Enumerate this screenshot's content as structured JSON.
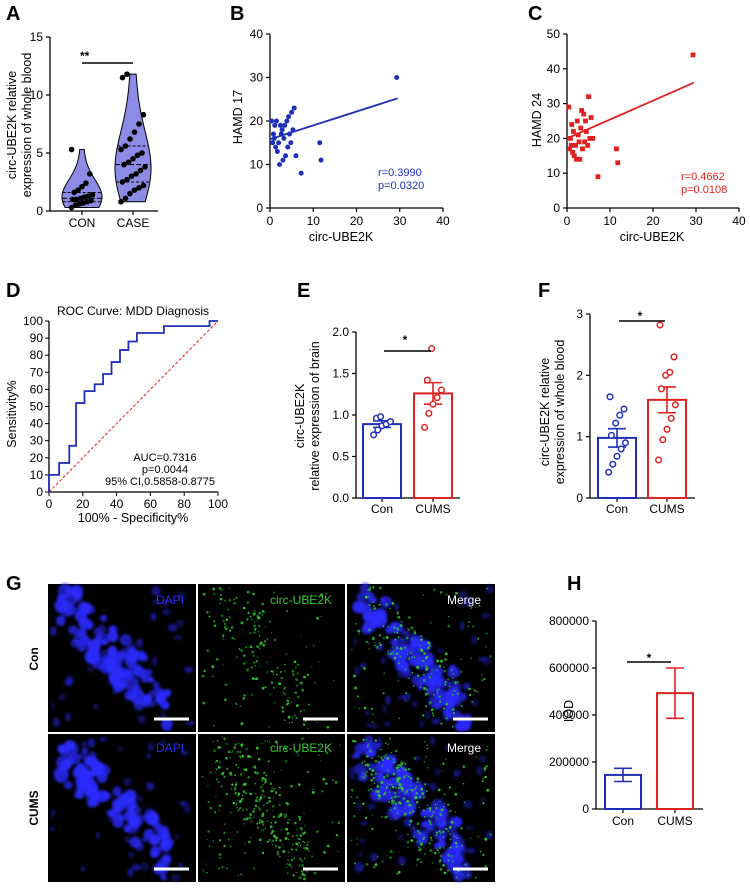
{
  "panels": {
    "A": "A",
    "B": "B",
    "C": "C",
    "D": "D",
    "E": "E",
    "F": "F",
    "G": "G",
    "H": "H"
  },
  "colors": {
    "blue": "#1f2fb8",
    "red": "#e02020",
    "violin_fill": "#8c8ce6",
    "dapi": "#2a2aff",
    "green": "#34c834"
  },
  "chart_data": [
    {
      "id": "A",
      "type": "violin",
      "ylabel_line1": "circ-UBE2K relative",
      "ylabel_line2": "expression of  whole blood",
      "ylim": [
        0,
        15
      ],
      "yticks": [
        "0",
        "5",
        "10",
        "15"
      ],
      "categories": [
        "CON",
        "CASE"
      ],
      "significance": "**",
      "groups": [
        {
          "name": "CON",
          "points": [
            0.3,
            0.5,
            0.6,
            0.7,
            0.8,
            0.9,
            1.0,
            1.0,
            1.1,
            1.2,
            1.3,
            1.4,
            1.6,
            1.8,
            2.1,
            2.4,
            3.2,
            5.3
          ]
        },
        {
          "name": "CASE",
          "points": [
            0.8,
            1.1,
            1.5,
            1.8,
            2.0,
            2.2,
            2.5,
            2.7,
            3.0,
            3.2,
            3.5,
            3.8,
            4.0,
            4.2,
            4.5,
            4.8,
            5.0,
            5.3,
            5.6,
            6.2,
            6.8,
            7.5,
            8.3,
            11.5,
            11.8
          ]
        }
      ]
    },
    {
      "id": "B",
      "type": "scatter",
      "xlabel": "circ-UBE2K",
      "ylabel": "HAMD 17",
      "xlim": [
        0,
        40
      ],
      "ylim": [
        0,
        40
      ],
      "xticks": [
        "0",
        "10",
        "20",
        "30",
        "40"
      ],
      "yticks": [
        "0",
        "10",
        "20",
        "30",
        "40"
      ],
      "r_text": "r=0.3990",
      "p_text": "p=0.0320",
      "fit": {
        "x": [
          0,
          29.5
        ],
        "y": [
          15.8,
          25.2
        ]
      },
      "x": [
        0.4,
        0.6,
        0.8,
        1.0,
        1.1,
        1.3,
        1.5,
        1.7,
        2.0,
        2.2,
        2.4,
        2.6,
        2.8,
        3.0,
        3.2,
        3.4,
        3.6,
        3.9,
        4.1,
        4.3,
        4.5,
        4.8,
        5.0,
        5.3,
        5.6,
        6.0,
        7.2,
        11.5,
        11.8,
        29.3
      ],
      "y": [
        20,
        15,
        17,
        16,
        19,
        14,
        20,
        13,
        15,
        10,
        19,
        17,
        18,
        11,
        16,
        19,
        12,
        20,
        14,
        21,
        17,
        15,
        22,
        18,
        23,
        12,
        8,
        15,
        11,
        30
      ]
    },
    {
      "id": "C",
      "type": "scatter",
      "xlabel": "circ-UBE2K",
      "ylabel": "HAMD 24",
      "xlim": [
        0,
        40
      ],
      "ylim": [
        0,
        50
      ],
      "xticks": [
        "0",
        "10",
        "20",
        "30",
        "40"
      ],
      "yticks": [
        "0",
        "10",
        "20",
        "30",
        "40",
        "50"
      ],
      "r_text": "r=0.4662",
      "p_text": "p=0.0108",
      "fit": {
        "x": [
          0,
          29.5
        ],
        "y": [
          20.0,
          36.0
        ]
      },
      "x": [
        0.4,
        0.6,
        0.8,
        1.0,
        1.1,
        1.3,
        1.5,
        1.7,
        2.0,
        2.2,
        2.4,
        2.6,
        2.8,
        3.0,
        3.2,
        3.4,
        3.6,
        3.9,
        4.1,
        4.3,
        4.5,
        4.8,
        5.0,
        5.3,
        5.6,
        6.0,
        7.2,
        11.5,
        11.8,
        29.3
      ],
      "y": [
        29,
        17,
        20,
        18,
        24,
        16,
        22,
        15,
        18,
        14,
        25,
        21,
        19,
        14,
        23,
        28,
        17,
        27,
        19,
        25,
        22,
        18,
        32,
        20,
        26,
        20,
        9,
        17,
        13,
        44
      ]
    },
    {
      "id": "D",
      "type": "roc",
      "title": "ROC Curve: MDD Diagnosis",
      "xlabel": "100% - Specificity%",
      "ylabel": "Sensitivity%",
      "xlim": [
        0,
        100
      ],
      "ylim": [
        0,
        100
      ],
      "xticks": [
        "0",
        "20",
        "40",
        "60",
        "80",
        "100"
      ],
      "yticks": [
        "0",
        "10",
        "20",
        "30",
        "40",
        "50",
        "60",
        "70",
        "80",
        "90",
        "100"
      ],
      "auc_text": "AUC=0.7316",
      "p_text": "p=0.0044",
      "ci_text": "95% CI,0.5858-0.8775",
      "curve_x": [
        0,
        0,
        6,
        6,
        12,
        12,
        16,
        16,
        21,
        21,
        27,
        27,
        32,
        32,
        37,
        37,
        42,
        42,
        47,
        47,
        52,
        52,
        58,
        58,
        63,
        63,
        68,
        68,
        74,
        74,
        79,
        79,
        84,
        84,
        89,
        89,
        95,
        95,
        100
      ],
      "curve_y": [
        0,
        10,
        10,
        17,
        17,
        27,
        27,
        52,
        52,
        59,
        59,
        63,
        63,
        69,
        69,
        76,
        76,
        83,
        83,
        88,
        88,
        93,
        93,
        93,
        93,
        93,
        93,
        97,
        97,
        97,
        97,
        97,
        97,
        97,
        97,
        97,
        97,
        100,
        100
      ]
    },
    {
      "id": "E",
      "type": "bar",
      "ylabel_line1": "circ-UBE2K",
      "ylabel_line2": "relative expression of  brain",
      "ylim": [
        0,
        2.0
      ],
      "yticks": [
        "0.0",
        "0.5",
        "1.0",
        "1.5",
        "2.0"
      ],
      "categories": [
        "Con",
        "CUMS"
      ],
      "significance": "*",
      "series": [
        {
          "name": "Con",
          "mean": 0.89,
          "sem": 0.04,
          "points": [
            0.76,
            0.82,
            0.87,
            0.89,
            0.92,
            0.96,
            0.98
          ]
        },
        {
          "name": "CUMS",
          "mean": 1.26,
          "sem": 0.13,
          "points": [
            0.85,
            1.02,
            1.13,
            1.21,
            1.3,
            1.42,
            1.8
          ]
        }
      ]
    },
    {
      "id": "F",
      "type": "bar",
      "ylabel_line1": "circ-UBE2K relative",
      "ylabel_line2": "expression of whole blood",
      "ylim": [
        0,
        3
      ],
      "yticks": [
        "0",
        "1",
        "2",
        "3"
      ],
      "categories": [
        "Con",
        "CUMS"
      ],
      "significance": "*",
      "series": [
        {
          "name": "Con",
          "mean": 0.98,
          "sem": 0.15,
          "points": [
            0.42,
            0.55,
            0.68,
            0.8,
            0.9,
            1.02,
            1.22,
            1.35,
            1.45,
            1.65
          ]
        },
        {
          "name": "CUMS",
          "mean": 1.6,
          "sem": 0.21,
          "points": [
            0.62,
            0.95,
            1.12,
            1.3,
            1.52,
            1.78,
            2.0,
            2.05,
            2.3,
            2.82
          ]
        }
      ]
    },
    {
      "id": "H",
      "type": "bar",
      "ylabel": "IOD",
      "ylim": [
        0,
        800000
      ],
      "yticks": [
        "0",
        "200000",
        "400000",
        "600000",
        "800000"
      ],
      "categories": [
        "Con",
        "CUMS"
      ],
      "significance": "*",
      "series": [
        {
          "name": "Con",
          "mean": 145000,
          "sem": 28000
        },
        {
          "name": "CUMS",
          "mean": 493000,
          "sem": 107000
        }
      ]
    }
  ],
  "microscopy": {
    "row_labels": [
      "Con",
      "CUMS"
    ],
    "channel_labels": [
      "DAPI",
      "circ-UBE2K",
      "Merge"
    ]
  }
}
